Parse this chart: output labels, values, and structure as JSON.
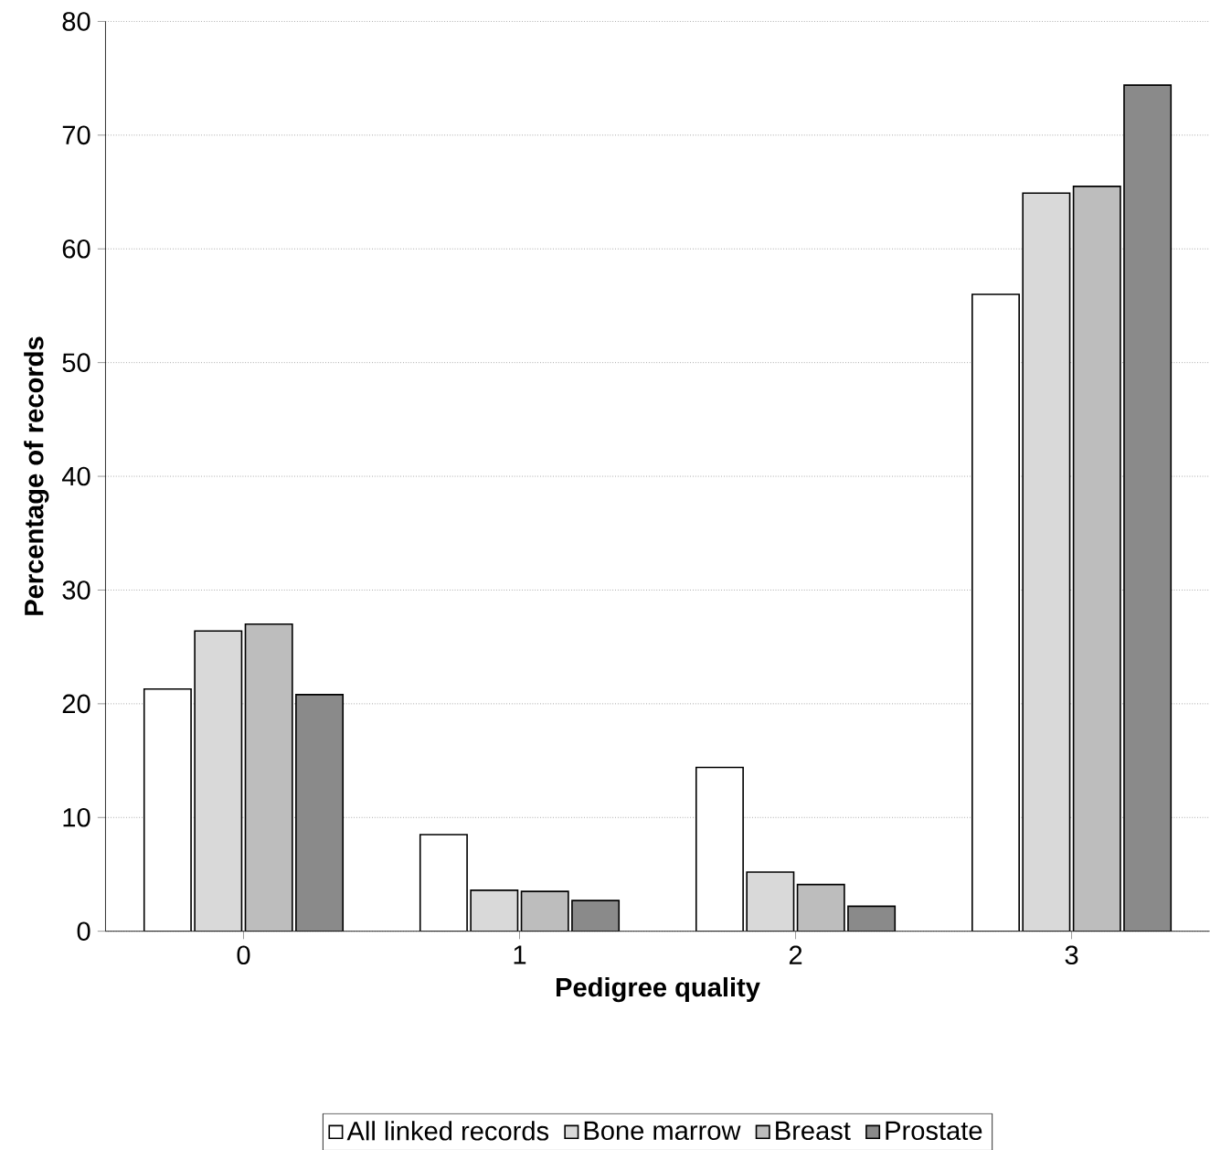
{
  "chart_data": {
    "type": "bar",
    "xlabel": "Pedigree quality",
    "ylabel": "Percentage of records",
    "categories": [
      "0",
      "1",
      "2",
      "3"
    ],
    "series": [
      {
        "name": "All linked records",
        "color": "#ffffff",
        "values": [
          21.3,
          8.5,
          14.4,
          56.0
        ]
      },
      {
        "name": "Bone marrow",
        "color": "#d9d9d9",
        "values": [
          26.4,
          3.6,
          5.2,
          64.9
        ]
      },
      {
        "name": "Breast",
        "color": "#bdbdbd",
        "values": [
          27.0,
          3.5,
          4.1,
          65.5
        ]
      },
      {
        "name": "Prostate",
        "color": "#8a8a8a",
        "values": [
          20.8,
          2.7,
          2.2,
          74.4
        ]
      }
    ],
    "ylim": [
      0,
      80
    ],
    "yticks": [
      0,
      10,
      20,
      30,
      40,
      50,
      60,
      70,
      80
    ],
    "grid": "y",
    "legend": "bottom"
  }
}
